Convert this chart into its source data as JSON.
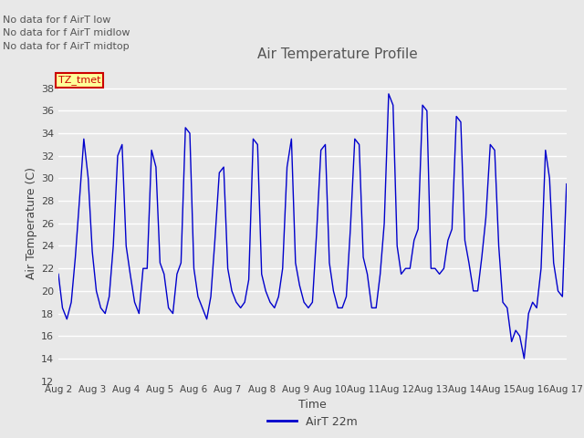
{
  "title": "Air Temperature Profile",
  "xlabel": "Time",
  "ylabel": "Air Temperature (C)",
  "ylim": [
    12,
    40
  ],
  "yticks": [
    12,
    14,
    16,
    18,
    20,
    22,
    24,
    26,
    28,
    30,
    32,
    34,
    36,
    38
  ],
  "xtick_labels": [
    "Aug 2",
    "Aug 3",
    "Aug 4",
    "Aug 5",
    "Aug 6",
    "Aug 7",
    "Aug 8",
    "Aug 9",
    "Aug 10",
    "Aug 11",
    "Aug 12",
    "Aug 13",
    "Aug 14",
    "Aug 15",
    "Aug 16",
    "Aug 17"
  ],
  "line_color": "#0000cc",
  "line_label": "AirT 22m",
  "legend_entries": [
    "No data for f AirT low",
    "No data for f AirT midlow",
    "No data for f AirT midtop"
  ],
  "legend_box_color": "#ffff99",
  "legend_box_edge": "#cc0000",
  "legend_text_color": "#cc0000",
  "bg_color": "#e8e8e8",
  "plot_bg_color": "#e8e8e8",
  "grid_color": "#ffffff",
  "time_values": [
    0.0,
    0.12,
    0.25,
    0.38,
    0.5,
    0.62,
    0.75,
    0.88,
    1.0,
    1.12,
    1.25,
    1.38,
    1.5,
    1.62,
    1.75,
    1.88,
    2.0,
    2.12,
    2.25,
    2.38,
    2.5,
    2.62,
    2.75,
    2.88,
    3.0,
    3.12,
    3.25,
    3.38,
    3.5,
    3.62,
    3.75,
    3.88,
    4.0,
    4.12,
    4.25,
    4.38,
    4.5,
    4.62,
    4.75,
    4.88,
    5.0,
    5.12,
    5.25,
    5.38,
    5.5,
    5.62,
    5.75,
    5.88,
    6.0,
    6.12,
    6.25,
    6.38,
    6.5,
    6.62,
    6.75,
    6.88,
    7.0,
    7.12,
    7.25,
    7.38,
    7.5,
    7.62,
    7.75,
    7.88,
    8.0,
    8.12,
    8.25,
    8.38,
    8.5,
    8.62,
    8.75,
    8.88,
    9.0,
    9.12,
    9.25,
    9.38,
    9.5,
    9.62,
    9.75,
    9.88,
    10.0,
    10.12,
    10.25,
    10.38,
    10.5,
    10.62,
    10.75,
    10.88,
    11.0,
    11.12,
    11.25,
    11.38,
    11.5,
    11.62,
    11.75,
    11.88,
    12.0,
    12.12,
    12.25,
    12.38,
    12.5,
    12.62,
    12.75,
    12.88,
    13.0,
    13.12,
    13.25,
    13.38,
    13.5,
    13.62,
    13.75,
    13.88,
    14.0,
    14.12,
    14.25,
    14.38,
    14.5,
    14.62,
    14.75,
    14.88,
    15.0
  ],
  "temp_values": [
    21.5,
    18.5,
    17.5,
    19.0,
    23.0,
    28.0,
    33.5,
    30.0,
    23.5,
    20.0,
    18.5,
    18.0,
    19.5,
    24.0,
    32.0,
    33.0,
    24.0,
    21.5,
    19.0,
    18.0,
    22.0,
    22.0,
    32.5,
    31.0,
    22.5,
    21.5,
    18.5,
    18.0,
    21.5,
    22.5,
    34.5,
    34.0,
    22.0,
    19.5,
    18.5,
    17.5,
    19.5,
    24.5,
    30.5,
    31.0,
    22.0,
    20.0,
    19.0,
    18.5,
    19.0,
    21.0,
    33.5,
    33.0,
    21.5,
    20.0,
    19.0,
    18.5,
    19.5,
    22.0,
    31.0,
    33.5,
    22.5,
    20.5,
    19.0,
    18.5,
    19.0,
    25.0,
    32.5,
    33.0,
    22.5,
    20.0,
    18.5,
    18.5,
    19.5,
    25.5,
    33.5,
    33.0,
    23.0,
    21.5,
    18.5,
    18.5,
    21.5,
    26.0,
    37.5,
    36.5,
    24.0,
    21.5,
    22.0,
    22.0,
    24.5,
    25.5,
    36.5,
    36.0,
    22.0,
    22.0,
    21.5,
    22.0,
    24.5,
    25.5,
    35.5,
    35.0,
    24.5,
    22.5,
    20.0,
    20.0,
    23.0,
    26.5,
    33.0,
    32.5,
    24.0,
    19.0,
    18.5,
    15.5,
    16.5,
    16.0,
    14.0,
    18.0,
    19.0,
    18.5,
    22.0,
    32.5,
    30.0,
    22.5,
    20.0,
    19.5,
    29.5
  ]
}
